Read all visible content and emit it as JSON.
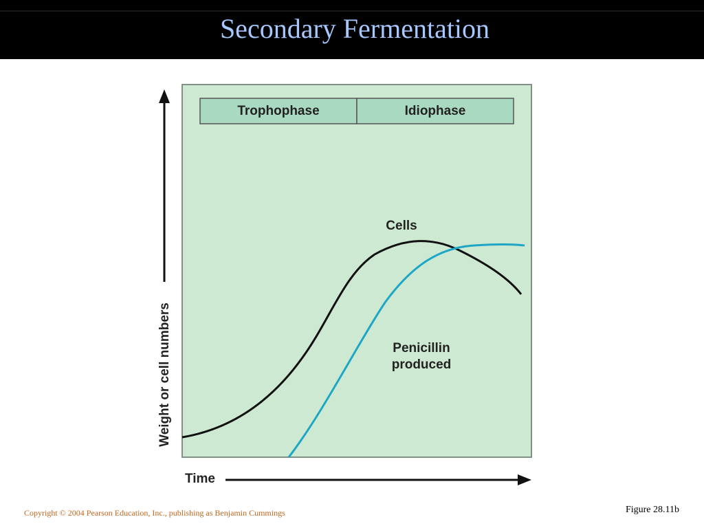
{
  "header": {
    "title": "Secondary Fermentation"
  },
  "figure": {
    "phases": [
      "Trophophase",
      "Idiophase"
    ],
    "y_axis_label": "Weight or cell numbers",
    "x_axis_label": "Time",
    "curve_labels": {
      "cells": "Cells",
      "penicillin": [
        "Penicillin",
        "produced"
      ]
    }
  },
  "footer": {
    "copyright": "Copyright © 2004 Pearson Education, Inc., publishing as Benjamin Cummings",
    "figure_ref": "Figure 28.11b"
  }
}
